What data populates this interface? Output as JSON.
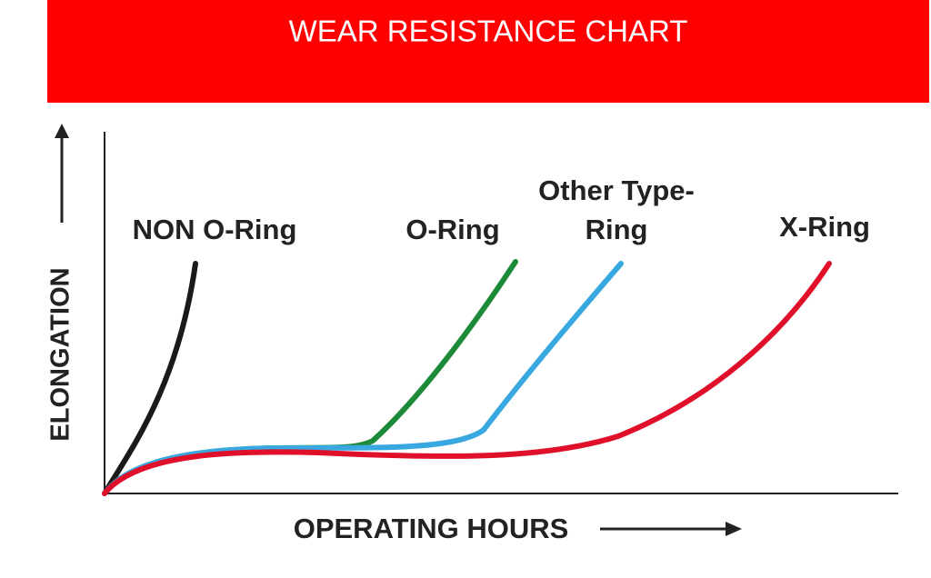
{
  "header": {
    "title": "WEAR RESISTANCE CHART"
  },
  "axes": {
    "y_label": "ELONGATION",
    "x_label": "OPERATING HOURS"
  },
  "curves": [
    {
      "label_lines": [
        "NON O-Ring"
      ]
    },
    {
      "label_lines": [
        "O-Ring"
      ]
    },
    {
      "label_lines": [
        "Other Type-",
        "Ring"
      ]
    },
    {
      "label_lines": [
        "X-Ring"
      ]
    }
  ]
}
